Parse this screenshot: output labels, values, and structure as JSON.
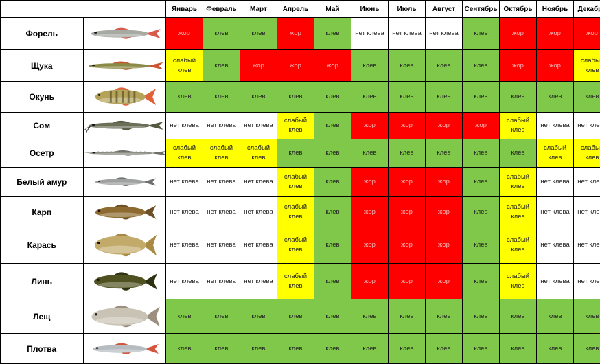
{
  "months": [
    "Январь",
    "Февраль",
    "Март",
    "Апрель",
    "Май",
    "Июнь",
    "Июль",
    "Август",
    "Сентябрь",
    "Октябрь",
    "Ноябрь",
    "Декабрь"
  ],
  "status_labels": {
    "good": "клев",
    "none": "нет клева",
    "weak": "слабый клев",
    "hot": "жор"
  },
  "colors": {
    "good": "#7fc84a",
    "none": "#ffffff",
    "weak": "#ffff00",
    "hot": "#ff0000"
  },
  "fish": [
    {
      "name": "Форель",
      "icon": "trout-icon",
      "body": "#a7aaa3",
      "fin": "#d85a4a",
      "months": [
        "hot",
        "good",
        "good",
        "hot",
        "good",
        "none",
        "none",
        "none",
        "good",
        "hot",
        "hot",
        "hot"
      ]
    },
    {
      "name": "Щука",
      "icon": "pike-icon",
      "body": "#8a8a46",
      "fin": "#c9542f",
      "months": [
        "weak",
        "good",
        "hot",
        "hot",
        "hot",
        "good",
        "good",
        "good",
        "good",
        "hot",
        "hot",
        "weak"
      ]
    },
    {
      "name": "Окунь",
      "icon": "perch-icon",
      "body": "#b5a35a",
      "fin": "#e0623a",
      "months": [
        "good",
        "good",
        "good",
        "good",
        "good",
        "good",
        "good",
        "good",
        "good",
        "good",
        "good",
        "good"
      ]
    },
    {
      "name": "Сом",
      "icon": "catfish-icon",
      "body": "#6b6f58",
      "fin": "#55583f",
      "months": [
        "none",
        "none",
        "none",
        "weak",
        "good",
        "hot",
        "hot",
        "hot",
        "hot",
        "weak",
        "none",
        "none"
      ]
    },
    {
      "name": "Осетр",
      "icon": "sturgeon-icon",
      "body": "#8d8f86",
      "fin": "#6d6f68",
      "months": [
        "weak",
        "weak",
        "weak",
        "good",
        "good",
        "good",
        "good",
        "good",
        "good",
        "good",
        "weak",
        "weak"
      ]
    },
    {
      "name": "Белый амур",
      "icon": "grass-carp-icon",
      "body": "#9fa0a0",
      "fin": "#6e6f70",
      "months": [
        "none",
        "none",
        "none",
        "weak",
        "good",
        "hot",
        "hot",
        "hot",
        "good",
        "weak",
        "none",
        "none"
      ]
    },
    {
      "name": "Карп",
      "icon": "carp-icon",
      "body": "#8d6a2f",
      "fin": "#6b4f25",
      "months": [
        "none",
        "none",
        "none",
        "weak",
        "good",
        "hot",
        "hot",
        "hot",
        "good",
        "weak",
        "none",
        "none"
      ]
    },
    {
      "name": "Карась",
      "icon": "crucian-icon",
      "body": "#c2ab6a",
      "fin": "#a88a45",
      "months": [
        "none",
        "none",
        "none",
        "weak",
        "good",
        "hot",
        "hot",
        "hot",
        "good",
        "weak",
        "none",
        "none"
      ]
    },
    {
      "name": "Линь",
      "icon": "tench-icon",
      "body": "#4f5220",
      "fin": "#2f3212",
      "months": [
        "none",
        "none",
        "none",
        "weak",
        "good",
        "hot",
        "hot",
        "hot",
        "good",
        "weak",
        "none",
        "none"
      ]
    },
    {
      "name": "Лещ",
      "icon": "bream-icon",
      "body": "#c9c3b5",
      "fin": "#9d8f80",
      "months": [
        "good",
        "good",
        "good",
        "good",
        "good",
        "good",
        "good",
        "good",
        "good",
        "good",
        "good",
        "good"
      ]
    },
    {
      "name": "Плотва",
      "icon": "roach-icon",
      "body": "#b7bcc0",
      "fin": "#d4553d",
      "months": [
        "good",
        "good",
        "good",
        "good",
        "good",
        "good",
        "good",
        "good",
        "good",
        "good",
        "good",
        "good"
      ]
    }
  ]
}
